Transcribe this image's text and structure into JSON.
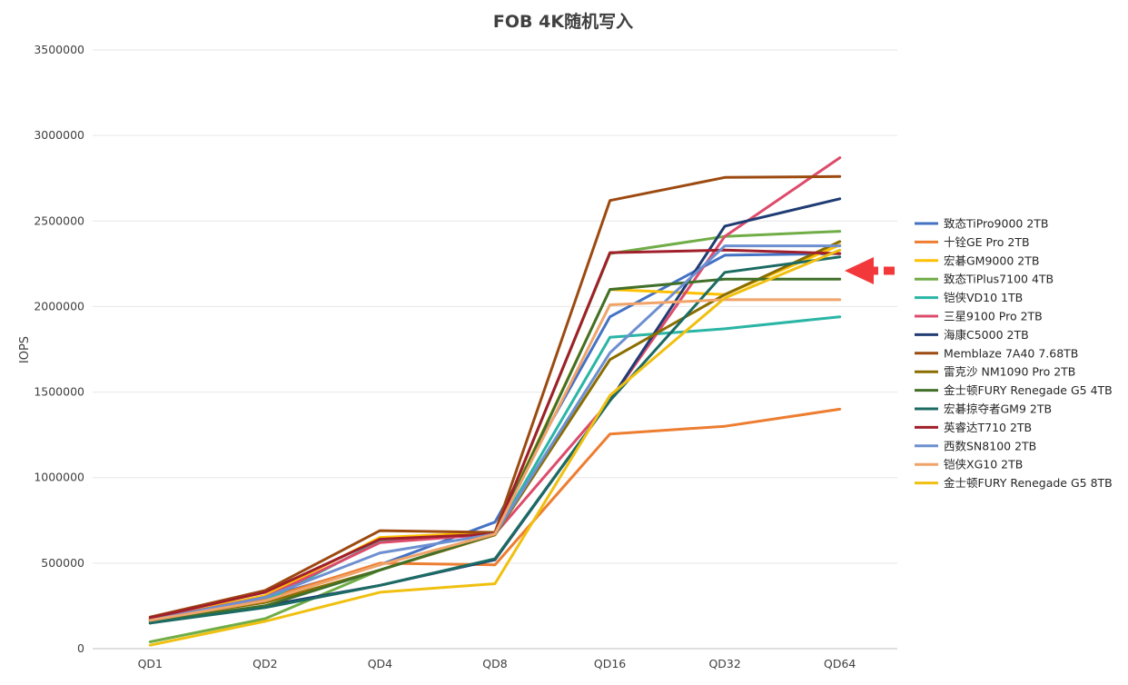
{
  "chart_data": {
    "type": "line",
    "title": "FOB 4K随机写入",
    "ylabel": "IOPS",
    "xlabel": "",
    "categories": [
      "QD1",
      "QD2",
      "QD4",
      "QD8",
      "QD16",
      "QD32",
      "QD64"
    ],
    "ylim": [
      0,
      3500000
    ],
    "yticks": [
      0,
      500000,
      1000000,
      1500000,
      2000000,
      2500000,
      3000000,
      3500000
    ],
    "grid": true,
    "legend_position": "right",
    "annotation": "red arrow pointing left at 金士顿FURY Renegade G5 8TB line",
    "series": [
      {
        "name": "致态TiPro9000 2TB",
        "color": "#4472c4",
        "values": [
          160000,
          300000,
          490000,
          740000,
          1940000,
          2300000,
          2310000
        ]
      },
      {
        "name": "十铨GE Pro 2TB",
        "color": "#ed7d31",
        "values": [
          170000,
          290000,
          500000,
          490000,
          1255000,
          1300000,
          1400000
        ]
      },
      {
        "name": "宏碁GM9000 2TB",
        "color": "#ffc000",
        "values": [
          170000,
          310000,
          650000,
          680000,
          2100000,
          2070000,
          2360000
        ]
      },
      {
        "name": "致态TiPlus7100 4TB",
        "color": "#70ad47",
        "values": [
          40000,
          175000,
          460000,
          670000,
          2310000,
          2410000,
          2440000
        ]
      },
      {
        "name": "铠侠VD10 1TB",
        "color": "#2ab5a5",
        "values": [
          150000,
          280000,
          630000,
          670000,
          1820000,
          1870000,
          1940000
        ]
      },
      {
        "name": "三星9100 Pro 2TB",
        "color": "#dd4b6b",
        "values": [
          170000,
          300000,
          620000,
          670000,
          1450000,
          2410000,
          2870000
        ]
      },
      {
        "name": "海康C5000 2TB",
        "color": "#1f3c73",
        "values": [
          150000,
          250000,
          370000,
          520000,
          1450000,
          2470000,
          2630000
        ]
      },
      {
        "name": "Memblaze 7A40 7.68TB",
        "color": "#9c4a10",
        "values": [
          185000,
          340000,
          690000,
          680000,
          2620000,
          2755000,
          2760000
        ]
      },
      {
        "name": "雷克沙 NM1090 Pro 2TB",
        "color": "#8a6d00",
        "values": [
          170000,
          270000,
          460000,
          665000,
          1690000,
          2070000,
          2380000
        ]
      },
      {
        "name": "金士顿FURY Renegade G5 4TB",
        "color": "#41702a",
        "values": [
          160000,
          250000,
          460000,
          670000,
          2100000,
          2160000,
          2160000
        ]
      },
      {
        "name": "宏碁掠夺者GM9 2TB",
        "color": "#1b6b63",
        "values": [
          150000,
          240000,
          370000,
          525000,
          1450000,
          2200000,
          2290000
        ]
      },
      {
        "name": "英睿达T710 2TB",
        "color": "#a01f2a",
        "values": [
          180000,
          330000,
          640000,
          670000,
          2315000,
          2330000,
          2310000
        ]
      },
      {
        "name": "西数SN8100 2TB",
        "color": "#6d8fd0",
        "values": [
          165000,
          300000,
          560000,
          670000,
          1730000,
          2355000,
          2355000
        ]
      },
      {
        "name": "铠侠XG10 2TB",
        "color": "#f0a46a",
        "values": [
          165000,
          280000,
          490000,
          670000,
          2010000,
          2040000,
          2040000
        ]
      },
      {
        "name": "金士顿FURY Renegade G5 8TB",
        "color": "#f0c010",
        "values": [
          20000,
          160000,
          330000,
          380000,
          1480000,
          2050000,
          2330000
        ]
      }
    ]
  }
}
